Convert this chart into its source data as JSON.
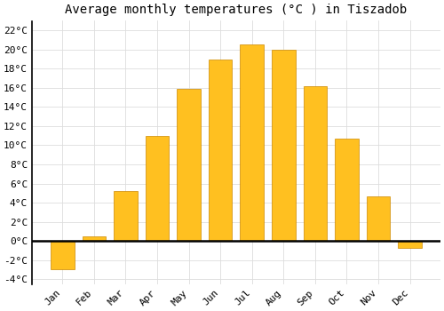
{
  "title": "Average monthly temperatures (°C ) in Tiszadob",
  "months": [
    "Jan",
    "Feb",
    "Mar",
    "Apr",
    "May",
    "Jun",
    "Jul",
    "Aug",
    "Sep",
    "Oct",
    "Nov",
    "Dec"
  ],
  "values": [
    -3.0,
    0.5,
    5.2,
    11.0,
    15.9,
    19.0,
    20.5,
    20.0,
    16.2,
    10.7,
    4.7,
    -0.7
  ],
  "bar_color": "#FFC020",
  "bar_edge_color": "#CC8800",
  "ylim": [
    -4.5,
    23.0
  ],
  "yticks": [
    -4,
    -2,
    0,
    2,
    4,
    6,
    8,
    10,
    12,
    14,
    16,
    18,
    20,
    22
  ],
  "ytick_labels": [
    "-4°C",
    "-2°C",
    "0°C",
    "2°C",
    "4°C",
    "6°C",
    "8°C",
    "10°C",
    "12°C",
    "14°C",
    "16°C",
    "18°C",
    "20°C",
    "22°C"
  ],
  "background_color": "#FFFFFF",
  "grid_color": "#DDDDDD",
  "title_fontsize": 10,
  "tick_fontsize": 8,
  "bar_width": 0.75
}
